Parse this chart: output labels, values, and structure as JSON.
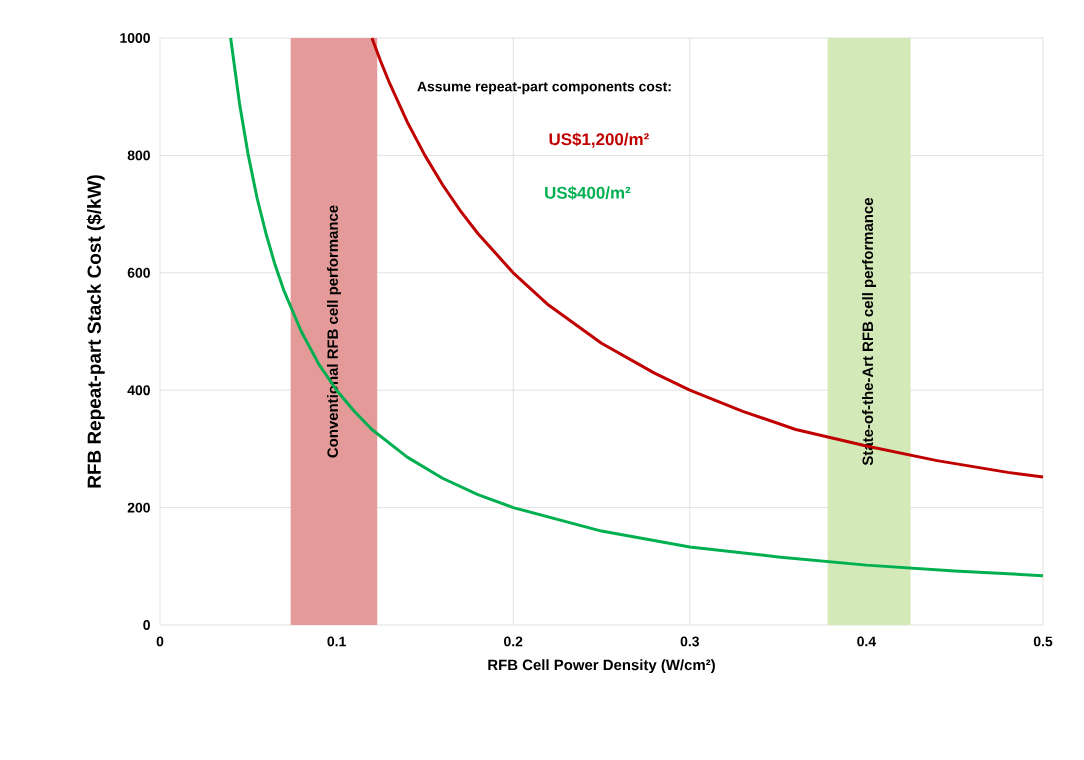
{
  "chart_data": {
    "type": "line",
    "xlabel": "RFB Cell Power Density (W/cm²)",
    "ylabel": "RFB Repeat-part Stack Cost ($/kW)",
    "xlim": [
      0,
      0.5
    ],
    "ylim": [
      0,
      1000
    ],
    "xticks": [
      0,
      0.1,
      0.2,
      0.3,
      0.4,
      0.5
    ],
    "yticks": [
      0,
      200,
      400,
      600,
      800,
      1000
    ],
    "grid": true,
    "legend": false,
    "marker": "none",
    "line_style": "solid",
    "annotations": [
      "Assume repeat-part components cost:"
    ],
    "bands": [
      {
        "axis": "x",
        "from": 0.074,
        "to": 0.123,
        "label": "Conventional RFB cell performance",
        "color": "#e59a9a"
      },
      {
        "axis": "x",
        "from": 0.378,
        "to": 0.425,
        "label": "State-of-the-Art RFB cell performance",
        "color": "#d3e9b7"
      }
    ],
    "series": [
      {
        "name": "US$1,200/m²",
        "color": "#c00000",
        "x": [
          0.12,
          0.125,
          0.13,
          0.14,
          0.15,
          0.16,
          0.17,
          0.18,
          0.2,
          0.22,
          0.25,
          0.28,
          0.3,
          0.33,
          0.36,
          0.4,
          0.44,
          0.48,
          0.5
        ],
        "values": [
          1000,
          960,
          923,
          857,
          800,
          750,
          706,
          667,
          600,
          545,
          480,
          429,
          400,
          364,
          333,
          305,
          280,
          260,
          252
        ]
      },
      {
        "name": "US$400/m²",
        "color": "#00b050",
        "x": [
          0.04,
          0.045,
          0.05,
          0.055,
          0.06,
          0.065,
          0.07,
          0.08,
          0.09,
          0.1,
          0.11,
          0.12,
          0.14,
          0.16,
          0.18,
          0.2,
          0.25,
          0.3,
          0.35,
          0.4,
          0.45,
          0.5
        ],
        "values": [
          1000,
          889,
          800,
          727,
          667,
          615,
          571,
          500,
          444,
          400,
          364,
          333,
          286,
          250,
          222,
          200,
          160,
          133,
          116,
          102,
          92,
          84
        ]
      }
    ]
  }
}
